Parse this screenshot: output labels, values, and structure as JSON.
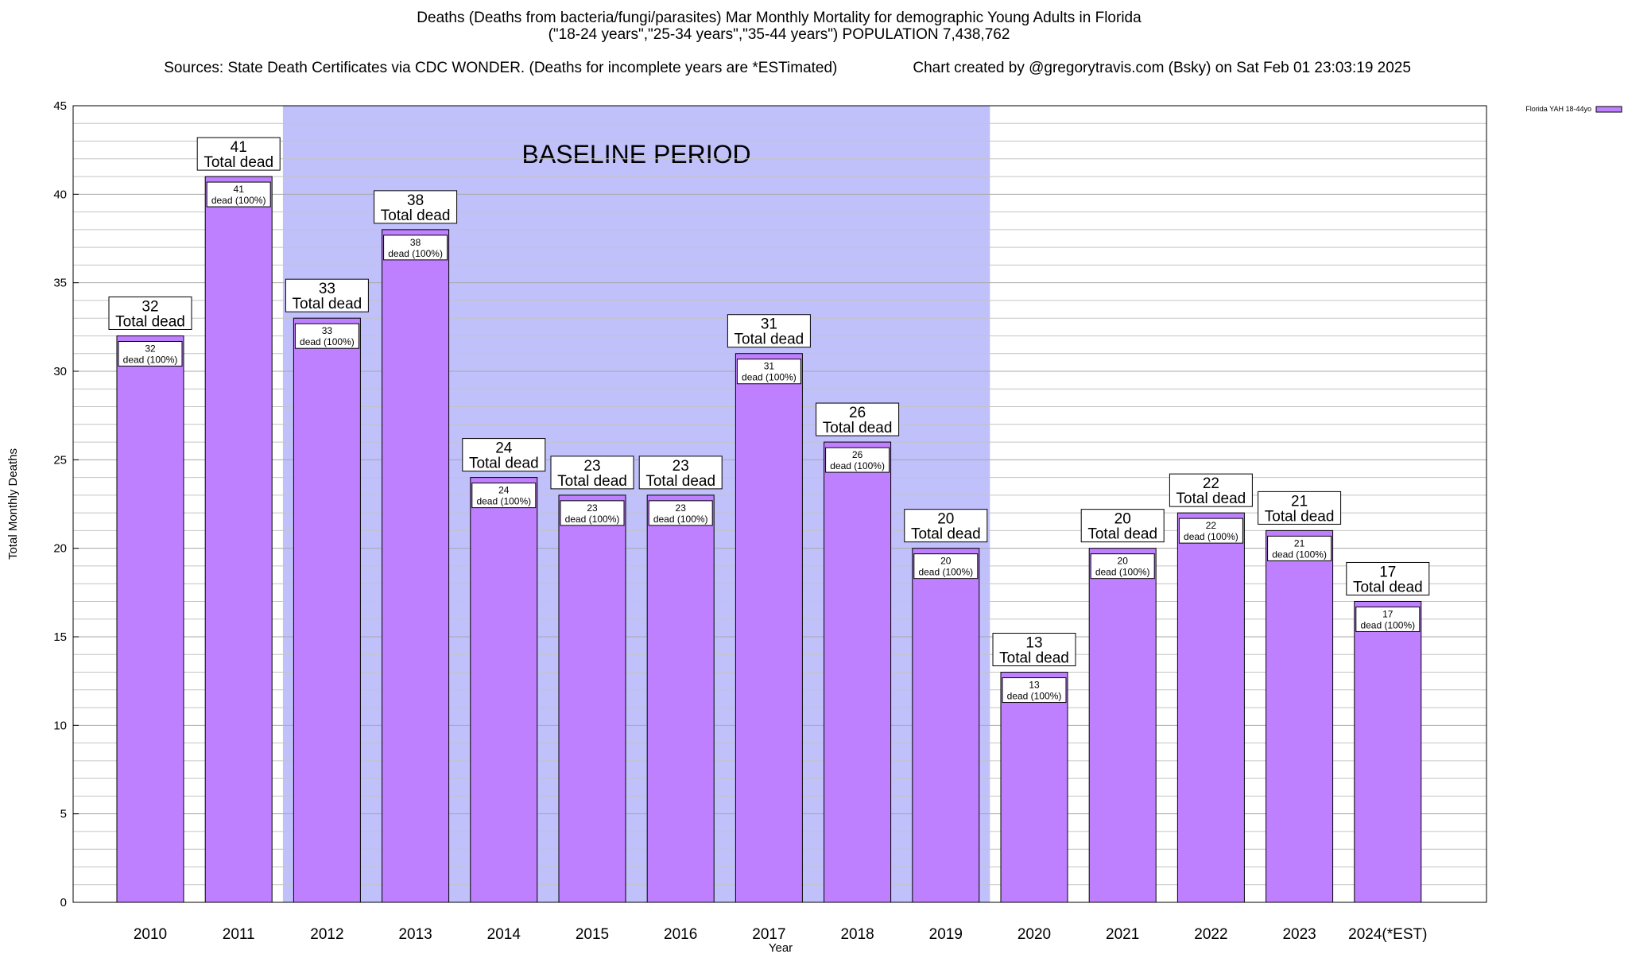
{
  "header": {
    "title_line1": "Deaths (Deaths from bacteria/fungi/parasites) Mar Monthly Mortality for demographic Young Adults in Florida",
    "title_line2": "(\"18-24 years\",\"25-34 years\",\"35-44 years\") POPULATION 7,438,762",
    "sources": "Sources: State Death Certificates via CDC WONDER. (Deaths for incomplete years are *ESTimated)",
    "credit": "Chart created by @gregorytravis.com (Bsky) on Sat Feb 01 23:03:19 2025"
  },
  "chart_data": {
    "type": "bar",
    "title": "Deaths (Deaths from bacteria/fungi/parasites) Mar Monthly Mortality for demographic Young Adults in Florida",
    "xlabel": "Year",
    "ylabel": "Total Monthly Deaths",
    "ylim": [
      0,
      45
    ],
    "y_ticks": [
      0,
      5,
      10,
      15,
      20,
      25,
      30,
      35,
      40,
      45
    ],
    "y_minor_step": 1,
    "grid": true,
    "legend": {
      "label": "Florida YAH 18-44yo",
      "position": "top-right",
      "color": "#bf80ff"
    },
    "baseline": {
      "label": "BASELINE PERIOD",
      "from": "2012",
      "to": "2019",
      "color": "#c0c0fa"
    },
    "bar_color": "#bf80ff",
    "total_label_suffix": "Total dead",
    "inner_label_suffix": "dead (100%)",
    "categories": [
      "2010",
      "2011",
      "2012",
      "2013",
      "2014",
      "2015",
      "2016",
      "2017",
      "2018",
      "2019",
      "2020",
      "2021",
      "2022",
      "2023",
      "2024(*EST)"
    ],
    "series": [
      {
        "name": "Florida YAH 18-44yo",
        "values": [
          32,
          41,
          33,
          38,
          24,
          23,
          23,
          31,
          26,
          20,
          13,
          20,
          22,
          21,
          17
        ]
      }
    ]
  }
}
